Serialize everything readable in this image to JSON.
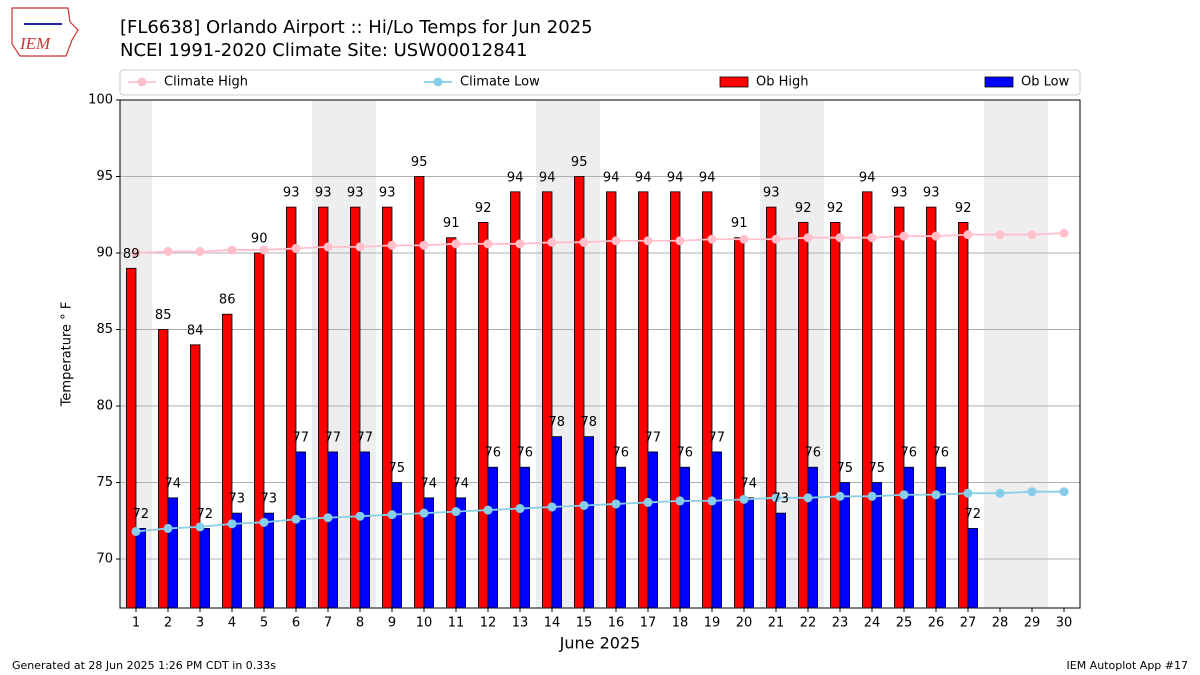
{
  "chart_data": {
    "type": "bar",
    "logo": "IEM",
    "title": "[FL6638] Orlando Airport :: Hi/Lo Temps for Jun 2025",
    "subtitle": "NCEI 1991-2020 Climate Site: USW00012841",
    "y_label": "Temperature ° F",
    "x_label": "June 2025",
    "footer_left": "Generated at 28 Jun 2025 1:26 PM CDT in 0.33s",
    "footer_right": "IEM Autoplot App #17",
    "x": [
      1,
      2,
      3,
      4,
      5,
      6,
      7,
      8,
      9,
      10,
      11,
      12,
      13,
      14,
      15,
      16,
      17,
      18,
      19,
      20,
      21,
      22,
      23,
      24,
      25,
      26,
      27,
      28,
      29,
      30
    ],
    "xlim": [
      0.5,
      30.5
    ],
    "xticks": [
      1,
      2,
      3,
      4,
      5,
      6,
      7,
      8,
      9,
      10,
      11,
      12,
      13,
      14,
      15,
      16,
      17,
      18,
      19,
      20,
      21,
      22,
      23,
      24,
      25,
      26,
      27,
      28,
      29,
      30
    ],
    "ylim": [
      66.8,
      100
    ],
    "yticks": [
      70,
      75,
      80,
      85,
      90,
      95,
      100
    ],
    "grid": true,
    "legend": "top",
    "shaded_days": [
      1,
      7,
      8,
      14,
      15,
      21,
      22,
      28,
      29
    ],
    "shade_color": "#eeeeee",
    "series": [
      {
        "name": "Climate High",
        "type": "line",
        "color": "#ffc0cb",
        "values": [
          90.0,
          90.1,
          90.1,
          90.2,
          90.2,
          90.3,
          90.4,
          90.4,
          90.5,
          90.5,
          90.6,
          90.6,
          90.6,
          90.7,
          90.7,
          90.8,
          90.8,
          90.8,
          90.9,
          90.9,
          90.9,
          91.0,
          91.0,
          91.0,
          91.1,
          91.1,
          91.2,
          91.2,
          91.2,
          91.3
        ]
      },
      {
        "name": "Climate Low",
        "type": "line",
        "color": "#87ceeb",
        "values": [
          71.8,
          72.0,
          72.1,
          72.3,
          72.4,
          72.6,
          72.7,
          72.8,
          72.9,
          73.0,
          73.1,
          73.2,
          73.3,
          73.4,
          73.5,
          73.6,
          73.7,
          73.8,
          73.8,
          73.9,
          74.0,
          74.0,
          74.1,
          74.1,
          74.2,
          74.2,
          74.3,
          74.3,
          74.4,
          74.4
        ]
      },
      {
        "name": "Ob High",
        "type": "bar",
        "color": "#ff0000",
        "values": [
          89,
          85,
          84,
          86,
          90,
          93,
          93,
          93,
          93,
          95,
          91,
          92,
          94,
          94,
          95,
          94,
          94,
          94,
          94,
          91,
          93,
          92,
          92,
          94,
          93,
          93,
          92,
          null,
          null,
          null
        ]
      },
      {
        "name": "Ob Low",
        "type": "bar",
        "color": "#0000ff",
        "values": [
          72,
          74,
          72,
          73,
          73,
          77,
          77,
          77,
          75,
          74,
          74,
          76,
          76,
          78,
          78,
          76,
          77,
          76,
          77,
          74,
          73,
          76,
          75,
          75,
          76,
          76,
          72,
          null,
          null,
          null
        ]
      }
    ]
  }
}
